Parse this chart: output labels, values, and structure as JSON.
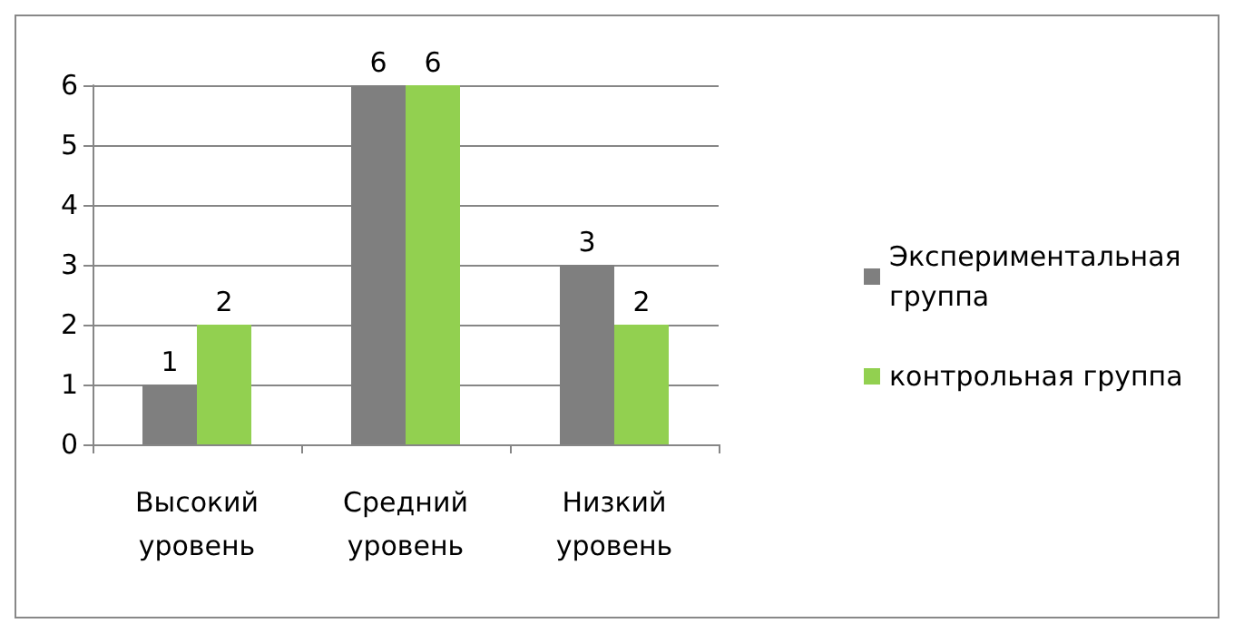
{
  "chart_data": {
    "type": "bar",
    "categories": [
      "Высокий уровень",
      "Средний уровень",
      "Низкий уровень"
    ],
    "series": [
      {
        "name": "Экспериментальная группа",
        "color": "#7f7f7f",
        "values": [
          1,
          6,
          3
        ]
      },
      {
        "name": "контрольная группа",
        "color": "#92d050",
        "values": [
          2,
          6,
          2
        ]
      }
    ],
    "ylim": [
      0,
      6
    ],
    "yticks": [
      0,
      1,
      2,
      3,
      4,
      5,
      6
    ],
    "grid": "y",
    "legend": "right",
    "data_labels": true
  }
}
